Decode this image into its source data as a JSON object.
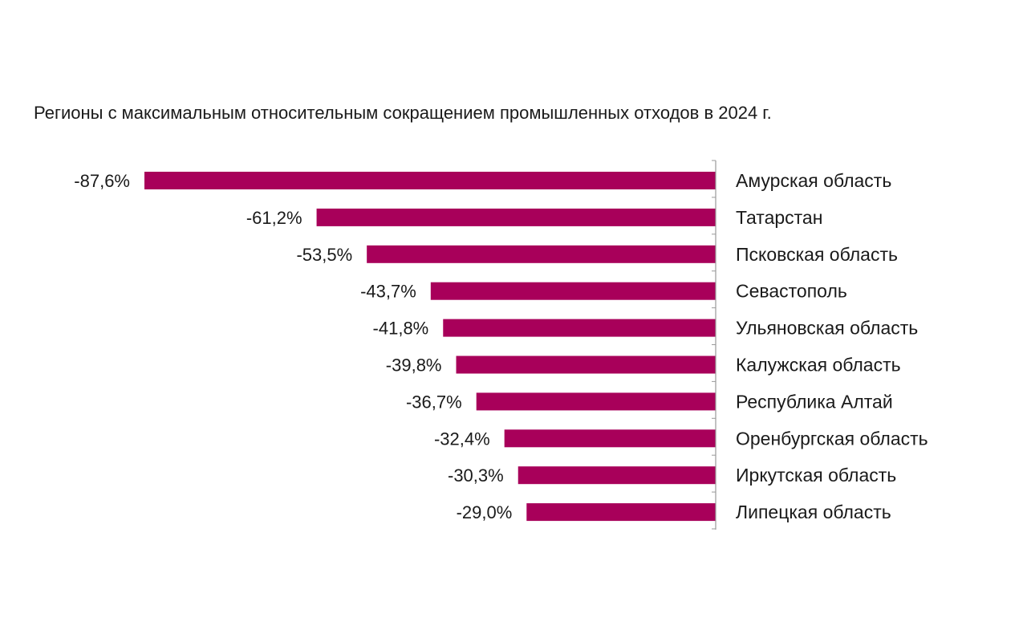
{
  "chart_data": {
    "type": "bar",
    "orientation": "horizontal",
    "title": "Регионы с максимальным относительным сокращением промышленных отходов в 2024 г.",
    "categories": [
      "Амурская область",
      "Татарстан",
      "Псковская область",
      "Севастополь",
      "Ульяновская область",
      "Калужская область",
      "Республика Алтай",
      "Оренбургская область",
      "Иркутская область",
      "Липецкая область"
    ],
    "values": [
      -87.6,
      -61.2,
      -53.5,
      -43.7,
      -41.8,
      -39.8,
      -36.7,
      -32.4,
      -30.3,
      -29.0
    ],
    "value_labels": [
      "-87,6%",
      "-61,2%",
      "-53,5%",
      "-43,7%",
      "-41,8%",
      "-39,8%",
      "-36,7%",
      "-32,4%",
      "-30,3%",
      "-29,0%"
    ],
    "bar_color": "#a8005a",
    "axis_color": "#9a9a9a",
    "grid": false,
    "legend": "none",
    "xlabel": "",
    "ylabel": ""
  }
}
